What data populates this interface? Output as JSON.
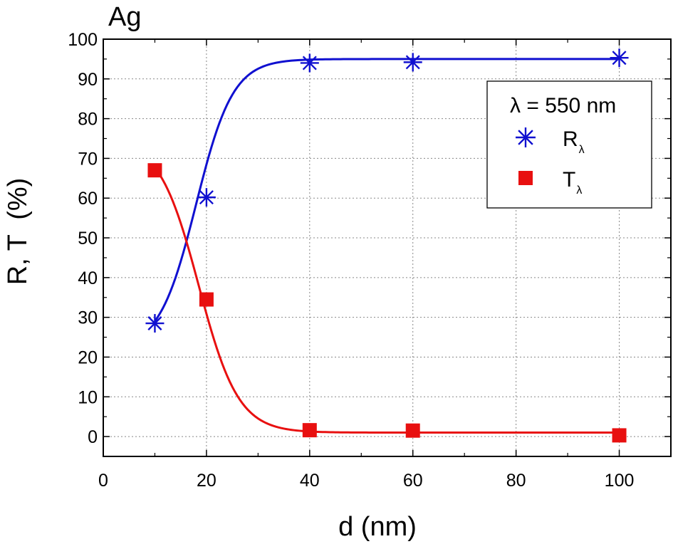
{
  "chart_data": {
    "type": "line",
    "title": "Ag",
    "xlabel": "d (nm)",
    "ylabel": "R, T  (%)",
    "xlim": [
      0,
      110
    ],
    "ylim": [
      -5,
      100
    ],
    "xticks": [
      0,
      20,
      40,
      60,
      80,
      100
    ],
    "yticks": [
      0,
      10,
      20,
      30,
      40,
      50,
      60,
      70,
      80,
      90,
      100
    ],
    "x_tick_labels": [
      "0",
      "20",
      "40",
      "60",
      "80",
      "100"
    ],
    "y_tick_labels": [
      "0",
      "10",
      "20",
      "30",
      "40",
      "50",
      "60",
      "70",
      "80",
      "90",
      "100"
    ],
    "grid": true,
    "x": [
      10,
      20,
      40,
      60,
      100
    ],
    "series": [
      {
        "name": "R",
        "subscript": "λ",
        "marker": "asterisk",
        "color": "#1010d0",
        "values": [
          28.5,
          60.2,
          94.0,
          94.2,
          95.3
        ],
        "fit": {
          "low": 22,
          "high": 95,
          "x0": 18,
          "k": 0.28,
          "x_start": 10,
          "x_end": 100
        }
      },
      {
        "name": "T",
        "subscript": "λ",
        "marker": "square",
        "color": "#e81010",
        "values": [
          67.0,
          34.5,
          1.6,
          1.5,
          0.3
        ],
        "fit": {
          "low": 1.0,
          "high": 75,
          "x0": 18.5,
          "k": 0.26,
          "x_start": 10,
          "x_end": 100
        }
      }
    ],
    "legend": {
      "position": "top-right",
      "title": "λ = 550 nm"
    }
  }
}
